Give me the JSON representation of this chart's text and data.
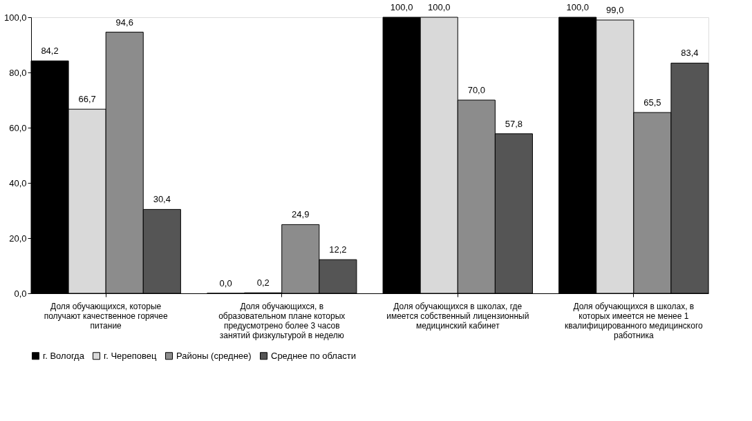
{
  "chart_data": {
    "type": "bar",
    "categories": [
      "Доля обучающихся, которые получают качественное горячее питание",
      "Доля обучающихся, в образовательном плане которых предусмотрено более 3 часов занятий физкультурой в неделю",
      "Доля обучающихся в школах, где имеется собственный лицензионный медицинский кабинет",
      "Доля обучающихся в школах, в которых имеется не менее 1 квалифицированного медицинского работника"
    ],
    "series": [
      {
        "name": "г. Вологда",
        "color": "#000000",
        "values": [
          84.2,
          0.0,
          100.0,
          100.0
        ],
        "value_labels": [
          "84,2",
          "0,0",
          "100,0",
          "100,0"
        ]
      },
      {
        "name": "г. Череповец",
        "color": "#d9d9d9",
        "values": [
          66.7,
          0.2,
          100.0,
          99.0
        ],
        "value_labels": [
          "66,7",
          "0,2",
          "100,0",
          "99,0"
        ]
      },
      {
        "name": "Районы (среднее)",
        "color": "#8c8c8c",
        "values": [
          94.6,
          24.9,
          70.0,
          65.5
        ],
        "value_labels": [
          "94,6",
          "24,9",
          "70,0",
          "65,5"
        ]
      },
      {
        "name": "Среднее по области",
        "color": "#555555",
        "values": [
          30.4,
          12.2,
          57.8,
          83.4
        ],
        "value_labels": [
          "30,4",
          "12,2",
          "57,8",
          "83,4"
        ]
      }
    ],
    "ylim": [
      0,
      100
    ],
    "yticks": [
      {
        "value": 0,
        "label": "0,0"
      },
      {
        "value": 20,
        "label": "20,0"
      },
      {
        "value": 40,
        "label": "40,0"
      },
      {
        "value": 60,
        "label": "60,0"
      },
      {
        "value": 80,
        "label": "80,0"
      },
      {
        "value": 100,
        "label": "100,0"
      }
    ],
    "grid": false,
    "legend": "bottom"
  }
}
